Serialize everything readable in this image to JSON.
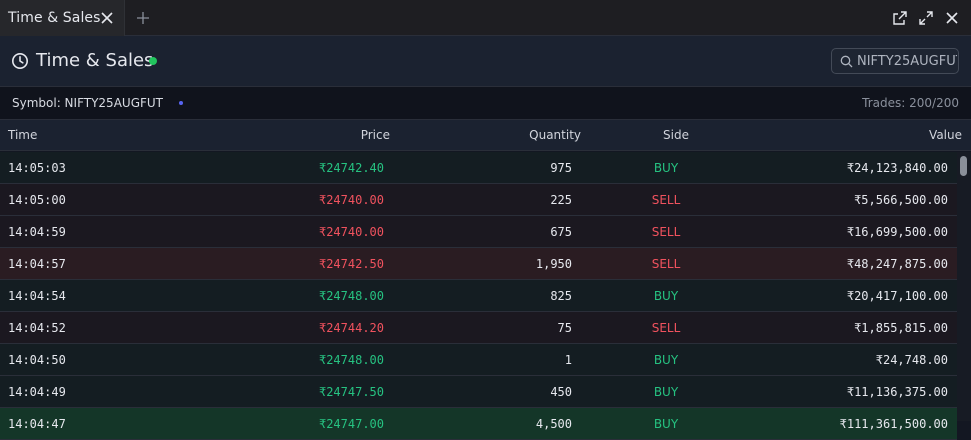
{
  "tab": {
    "label": "Time & Sales"
  },
  "header": {
    "title": "Time & Sales",
    "live_color": "#22c55e"
  },
  "search": {
    "value": "NIFTY25AUGFUT",
    "placeholder": ""
  },
  "symbol_bar": {
    "symbol": "Symbol: NIFTY25AUGFUT",
    "trades": "Trades: 200/200"
  },
  "columns": {
    "time": "Time",
    "price": "Price",
    "quantity": "Quantity",
    "side": "Side",
    "value": "Value"
  },
  "colors": {
    "buy": "#26c281",
    "sell": "#f0525e"
  },
  "rows": [
    {
      "time": "14:05:03",
      "price": "₹24742.40",
      "qty": "975",
      "side": "BUY",
      "value": "₹24,123,840.00"
    },
    {
      "time": "14:05:00",
      "price": "₹24740.00",
      "qty": "225",
      "side": "SELL",
      "value": "₹5,566,500.00"
    },
    {
      "time": "14:04:59",
      "price": "₹24740.00",
      "qty": "675",
      "side": "SELL",
      "value": "₹16,699,500.00"
    },
    {
      "time": "14:04:57",
      "price": "₹24742.50",
      "qty": "1,950",
      "side": "SELL",
      "value": "₹48,247,875.00"
    },
    {
      "time": "14:04:54",
      "price": "₹24748.00",
      "qty": "825",
      "side": "BUY",
      "value": "₹20,417,100.00"
    },
    {
      "time": "14:04:52",
      "price": "₹24744.20",
      "qty": "75",
      "side": "SELL",
      "value": "₹1,855,815.00"
    },
    {
      "time": "14:04:50",
      "price": "₹24748.00",
      "qty": "1",
      "side": "BUY",
      "value": "₹24,748.00"
    },
    {
      "time": "14:04:49",
      "price": "₹24747.50",
      "qty": "450",
      "side": "BUY",
      "value": "₹11,136,375.00"
    },
    {
      "time": "14:04:47",
      "price": "₹24747.00",
      "qty": "4,500",
      "side": "BUY",
      "value": "₹111,361,500.00"
    }
  ]
}
